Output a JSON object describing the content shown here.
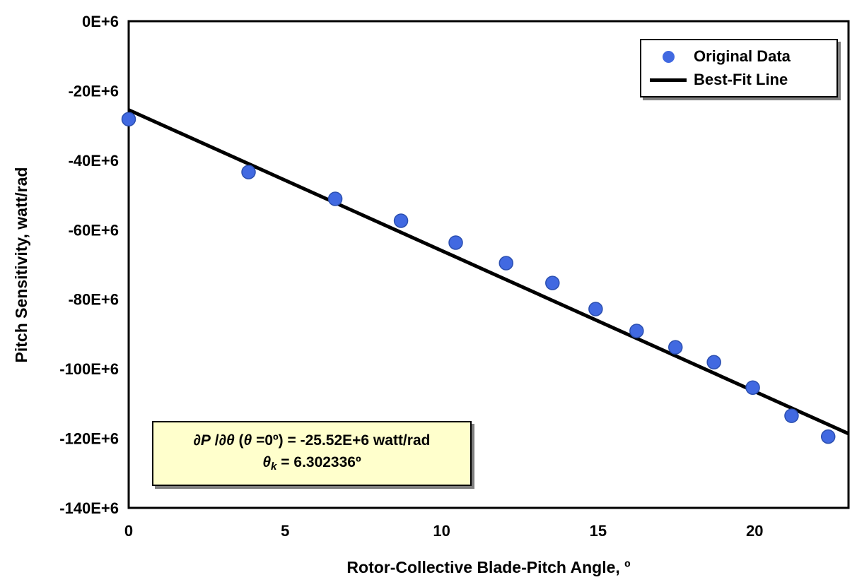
{
  "chart_data": {
    "type": "scatter",
    "title": "",
    "xlabel": "Rotor-Collective Blade-Pitch Angle, º",
    "ylabel": "Pitch Sensitivity, watt/rad",
    "xlim": [
      0,
      23
    ],
    "ylim_e6": [
      -140,
      0
    ],
    "y_unit_scale": "E+6",
    "grid": false,
    "legend_position": "top-right",
    "xticks": [
      0,
      5,
      10,
      15,
      20
    ],
    "xtick_labels": [
      "0",
      "5",
      "10",
      "15",
      "20"
    ],
    "ytick_values_e6": [
      0,
      -20,
      -40,
      -60,
      -80,
      -100,
      -120,
      -140
    ],
    "ytick_labels": [
      "0E+6",
      "-20E+6",
      "-40E+6",
      "-60E+6",
      "-80E+6",
      "-100E+6",
      "-120E+6",
      "-140E+6"
    ],
    "series": [
      {
        "name": "Original Data",
        "type": "scatter",
        "marker_color": "#4169E1",
        "marker_edge": "#2B4FB0",
        "points_e6": [
          [
            0.0,
            -28.2
          ],
          [
            3.83,
            -43.4
          ],
          [
            6.6,
            -51.1
          ],
          [
            8.7,
            -57.4
          ],
          [
            10.45,
            -63.7
          ],
          [
            12.06,
            -69.6
          ],
          [
            13.54,
            -75.3
          ],
          [
            14.92,
            -82.8
          ],
          [
            16.23,
            -89.1
          ],
          [
            17.47,
            -93.8
          ],
          [
            18.7,
            -98.1
          ],
          [
            19.94,
            -105.4
          ],
          [
            21.18,
            -113.5
          ],
          [
            22.35,
            -119.5
          ]
        ]
      },
      {
        "name": "Best-Fit Line",
        "type": "line",
        "line_color": "#000000",
        "points_e6": [
          [
            0,
            -25.52
          ],
          [
            23,
            -118.65
          ]
        ]
      }
    ]
  },
  "annotation": {
    "line1_full": "∂P/∂θ (θ=0º) = -25.52E+6 watt/rad",
    "line2_full": "θk = 6.302336º",
    "l1_dP": "∂P",
    "l1_slash": " /",
    "l1_dTheta": "∂θ",
    "l1_paren": " (",
    "l1_theta": "θ",
    "l1_rest": " =0º) = -25.52E+6 watt/rad",
    "l2_theta": "θ",
    "l2_sub": "k",
    "l2_rest": " = 6.302336º"
  },
  "colors": {
    "background": "#FFFFFF",
    "annotation_bg": "#FFFFCC",
    "frame": "#000000"
  }
}
